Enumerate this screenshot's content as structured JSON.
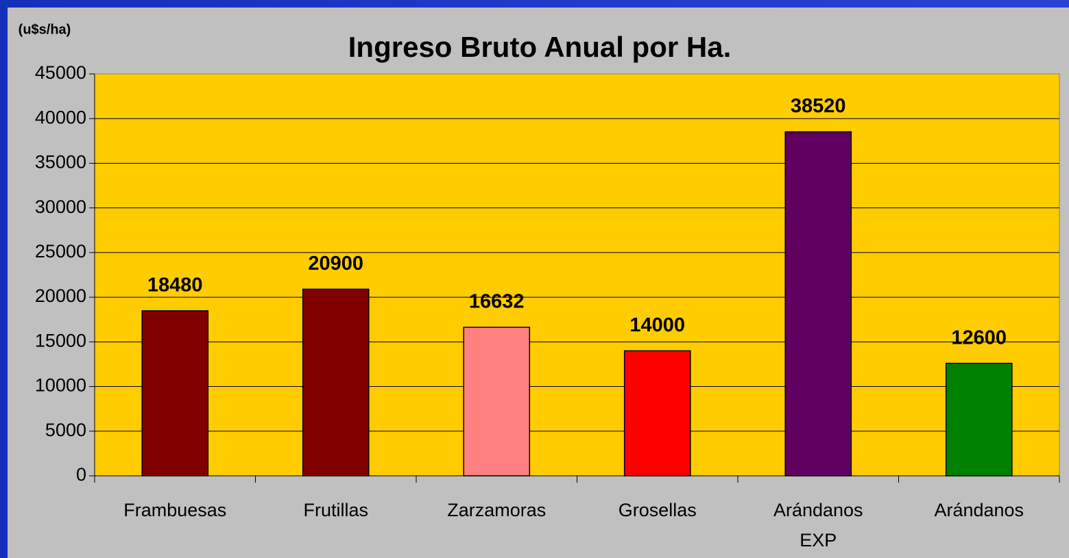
{
  "chart_data": {
    "type": "bar",
    "title": "Ingreso Bruto Anual por Ha.",
    "y_label": "(u$s/ha)",
    "categories": [
      "Frambuesas",
      "Frutillas",
      "Zarzamoras",
      "Grosellas",
      [
        "Arándanos",
        "EXP"
      ],
      "Arándanos"
    ],
    "values": [
      18480,
      20900,
      16632,
      14000,
      38520,
      12600
    ],
    "colors": [
      "#800000",
      "#800000",
      "#ff8080",
      "#ff0000",
      "#600060",
      "#008000"
    ],
    "plot_background": "#ffcc00",
    "ylim": [
      0,
      45000
    ],
    "yticks": [
      0,
      5000,
      10000,
      15000,
      20000,
      25000,
      30000,
      35000,
      40000,
      45000
    ],
    "grid": true
  }
}
